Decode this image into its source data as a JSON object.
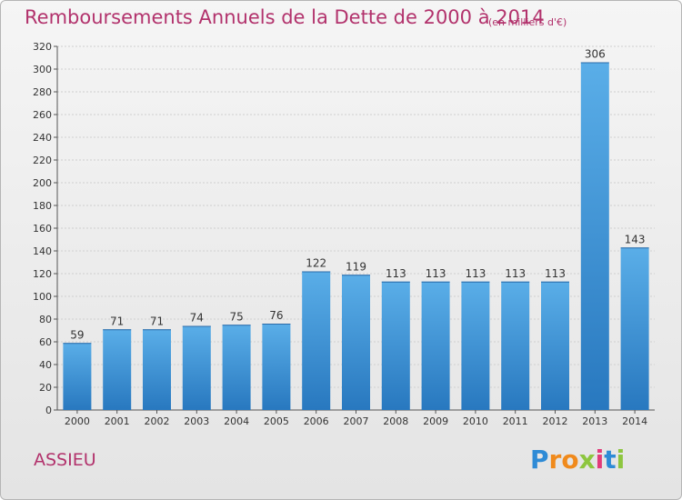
{
  "title": "Remboursements Annuels de la Dette de 2000 à 2014",
  "subtitle": "(en milliers d'€)",
  "commune": "ASSIEU",
  "logo": {
    "letters": [
      "P",
      "r",
      "o",
      "x",
      "i",
      "t",
      "i"
    ],
    "colors": [
      "#2e8bd6",
      "#f08a1c",
      "#f08a1c",
      "#8dc63f",
      "#e23b7a",
      "#2e8bd6",
      "#8dc63f"
    ]
  },
  "colors": {
    "bar": "#4a9ee0",
    "bar_dark": "#2b7cc4",
    "text_accent": "#b2326c"
  },
  "chart_data": {
    "type": "bar",
    "title": "Remboursements Annuels de la Dette de 2000 à 2014",
    "categories": [
      "2000",
      "2001",
      "2002",
      "2003",
      "2004",
      "2005",
      "2006",
      "2007",
      "2008",
      "2009",
      "2010",
      "2011",
      "2012",
      "2013",
      "2014"
    ],
    "values": [
      59,
      71,
      71,
      74,
      75,
      76,
      122,
      119,
      113,
      113,
      113,
      113,
      113,
      306,
      143
    ],
    "ylim": [
      0,
      320
    ],
    "yticks": [
      0,
      20,
      40,
      60,
      80,
      100,
      120,
      140,
      160,
      180,
      200,
      220,
      240,
      260,
      280,
      300,
      320
    ],
    "grid": true,
    "data_labels": true
  }
}
